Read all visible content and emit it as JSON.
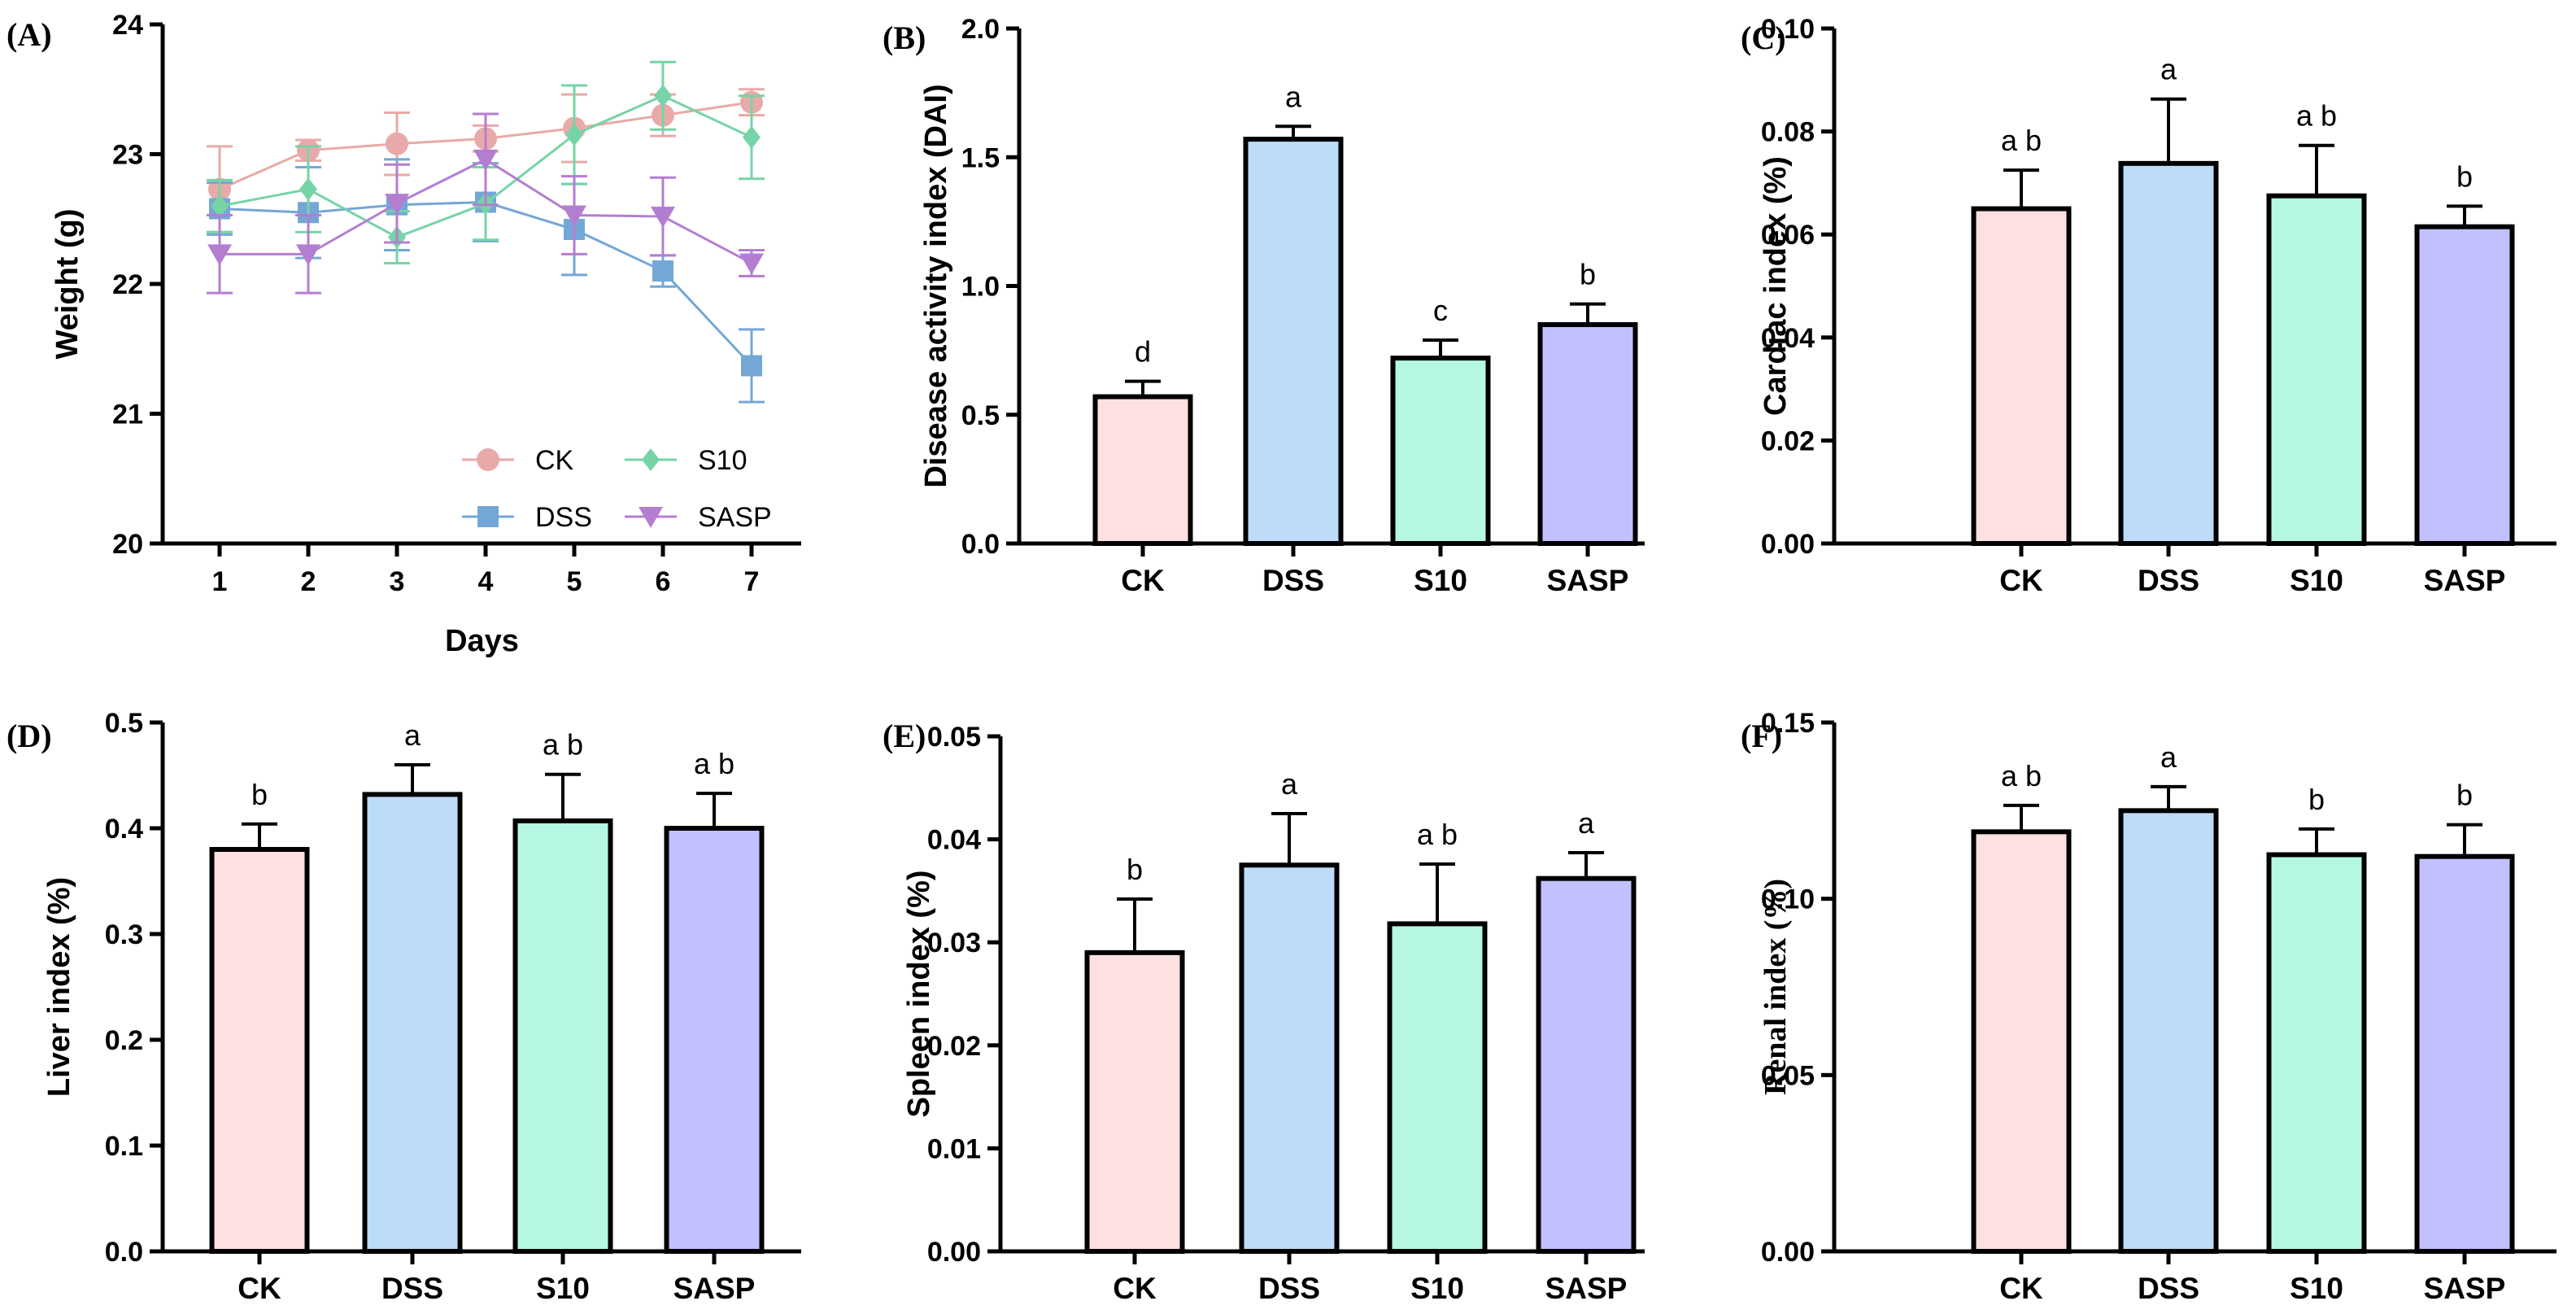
{
  "chart_data": [
    {
      "id": "A",
      "panel_label": "(A)",
      "type": "line",
      "xlabel": "Days",
      "ylabel": "Weight (g)",
      "ylabel_font": "sans",
      "x": [
        1,
        2,
        3,
        4,
        5,
        6,
        7
      ],
      "x_ticks": [
        "1",
        "2",
        "3",
        "4",
        "5",
        "6",
        "7"
      ],
      "ylim": [
        20,
        24
      ],
      "y_ticks": [
        "20",
        "21",
        "22",
        "23",
        "24"
      ],
      "legend_position": "bottom-right",
      "series": [
        {
          "name": "CK",
          "color": "#e8aaa8",
          "marker": "circle",
          "values": [
            22.73,
            23.03,
            23.08,
            23.12,
            23.2,
            23.3,
            23.4
          ],
          "errors": [
            0.33,
            0.08,
            0.24,
            0.1,
            0.26,
            0.16,
            0.1
          ]
        },
        {
          "name": "DSS",
          "color": "#74a7d6",
          "marker": "square",
          "values": [
            22.58,
            22.55,
            22.61,
            22.63,
            22.42,
            22.1,
            21.37
          ],
          "errors": [
            0.2,
            0.35,
            0.35,
            0.3,
            0.35,
            0.12,
            0.28
          ]
        },
        {
          "name": "S10",
          "color": "#76d4a6",
          "marker": "diamond",
          "values": [
            22.6,
            22.73,
            22.36,
            22.62,
            23.15,
            23.45,
            23.13
          ],
          "errors": [
            0.2,
            0.33,
            0.2,
            0.28,
            0.38,
            0.26,
            0.32
          ]
        },
        {
          "name": "SASP",
          "color": "#b47ed0",
          "marker": "triangle-down",
          "values": [
            22.23,
            22.23,
            22.62,
            22.96,
            22.53,
            22.52,
            22.16
          ],
          "errors": [
            0.3,
            0.3,
            0.3,
            0.35,
            0.3,
            0.3,
            0.1
          ]
        }
      ]
    },
    {
      "id": "B",
      "panel_label": "(B)",
      "type": "bar",
      "ylabel": "Disease activity index (DAI)",
      "ylabel_font": "sans",
      "categories": [
        "CK",
        "DSS",
        "S10",
        "SASP"
      ],
      "values": [
        0.57,
        1.57,
        0.72,
        0.85
      ],
      "errors": [
        0.06,
        0.05,
        0.07,
        0.08
      ],
      "significance": [
        "d",
        "a",
        "c",
        "b"
      ],
      "ylim": [
        0,
        2.0
      ],
      "y_ticks": [
        "0.0",
        "0.5",
        "1.0",
        "1.5",
        "2.0"
      ]
    },
    {
      "id": "C",
      "panel_label": "(C)",
      "type": "bar",
      "ylabel": "Cardiac index (%)",
      "ylabel_font": "sans",
      "categories": [
        "CK",
        "DSS",
        "S10",
        "SASP"
      ],
      "values": [
        0.065,
        0.0738,
        0.0675,
        0.0615
      ],
      "errors": [
        0.0075,
        0.0125,
        0.0098,
        0.004
      ],
      "significance": [
        "a b",
        "a",
        "a b",
        "b"
      ],
      "ylim": [
        0,
        0.1
      ],
      "y_ticks": [
        "0.00",
        "0.02",
        "0.04",
        "0.06",
        "0.08",
        "0.10"
      ]
    },
    {
      "id": "D",
      "panel_label": "(D)",
      "type": "bar",
      "ylabel": "Liver index (%)",
      "ylabel_font": "sans",
      "categories": [
        "CK",
        "DSS",
        "S10",
        "SASP"
      ],
      "values": [
        0.38,
        0.432,
        0.407,
        0.4
      ],
      "errors": [
        0.024,
        0.028,
        0.044,
        0.033
      ],
      "significance": [
        "b",
        "a",
        "a b",
        "a b"
      ],
      "ylim": [
        0,
        0.5
      ],
      "y_ticks": [
        "0.0",
        "0.1",
        "0.2",
        "0.3",
        "0.4",
        "0.5"
      ]
    },
    {
      "id": "E",
      "panel_label": "(E)",
      "type": "bar",
      "ylabel": "Spleen index (%)",
      "ylabel_font": "sans",
      "categories": [
        "CK",
        "DSS",
        "S10",
        "SASP"
      ],
      "values": [
        0.029,
        0.0375,
        0.0318,
        0.0362
      ],
      "errors": [
        0.0052,
        0.005,
        0.0058,
        0.0025
      ],
      "significance": [
        "b",
        "a",
        "a b",
        "a"
      ],
      "ylim": [
        0,
        0.05
      ],
      "y_ticks": [
        "0.00",
        "0.01",
        "0.02",
        "0.03",
        "0.04",
        "0.05"
      ]
    },
    {
      "id": "F",
      "panel_label": "(F)",
      "type": "bar",
      "ylabel": "Renal index (%)",
      "ylabel_font": "serif",
      "categories": [
        "CK",
        "DSS",
        "S10",
        "SASP"
      ],
      "values": [
        0.119,
        0.125,
        0.1125,
        0.112
      ],
      "errors": [
        0.0075,
        0.0068,
        0.0073,
        0.009
      ],
      "significance": [
        "a b",
        "a",
        "b",
        "b"
      ],
      "ylim": [
        0,
        0.15
      ],
      "y_ticks": [
        "0.00",
        "0.05",
        "0.10",
        "0.15"
      ]
    }
  ],
  "bar_colors": {
    "CK": "#ffe0e0",
    "DSS": "#bcdcf8",
    "S10": "#b5f7e3",
    "SASP": "#c2c0fe"
  }
}
